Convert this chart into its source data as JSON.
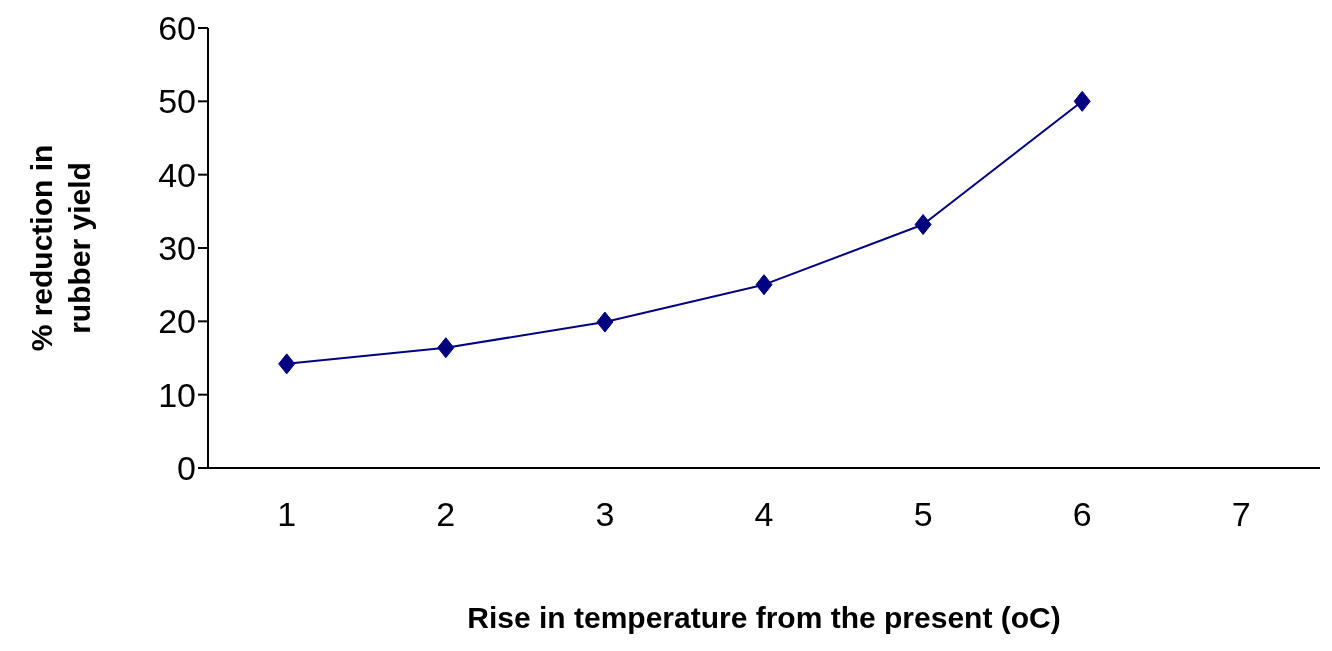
{
  "chart_data": {
    "type": "line",
    "xlabel": "Rise in temperature from the present (oC)",
    "ylabel": "% reduction in rubber yield",
    "categories": [
      "1",
      "2",
      "3",
      "4",
      "5",
      "6",
      "7"
    ],
    "series": [
      {
        "color": "#000080",
        "values": [
          14.2,
          16.4,
          19.9,
          25,
          33.2,
          50,
          null
        ]
      }
    ],
    "ylim": [
      0,
      60
    ],
    "yticks": [
      0,
      10,
      20,
      30,
      40,
      50,
      60
    ],
    "marker": "diamond",
    "line_style": "solid",
    "grid": false,
    "legend": false
  }
}
